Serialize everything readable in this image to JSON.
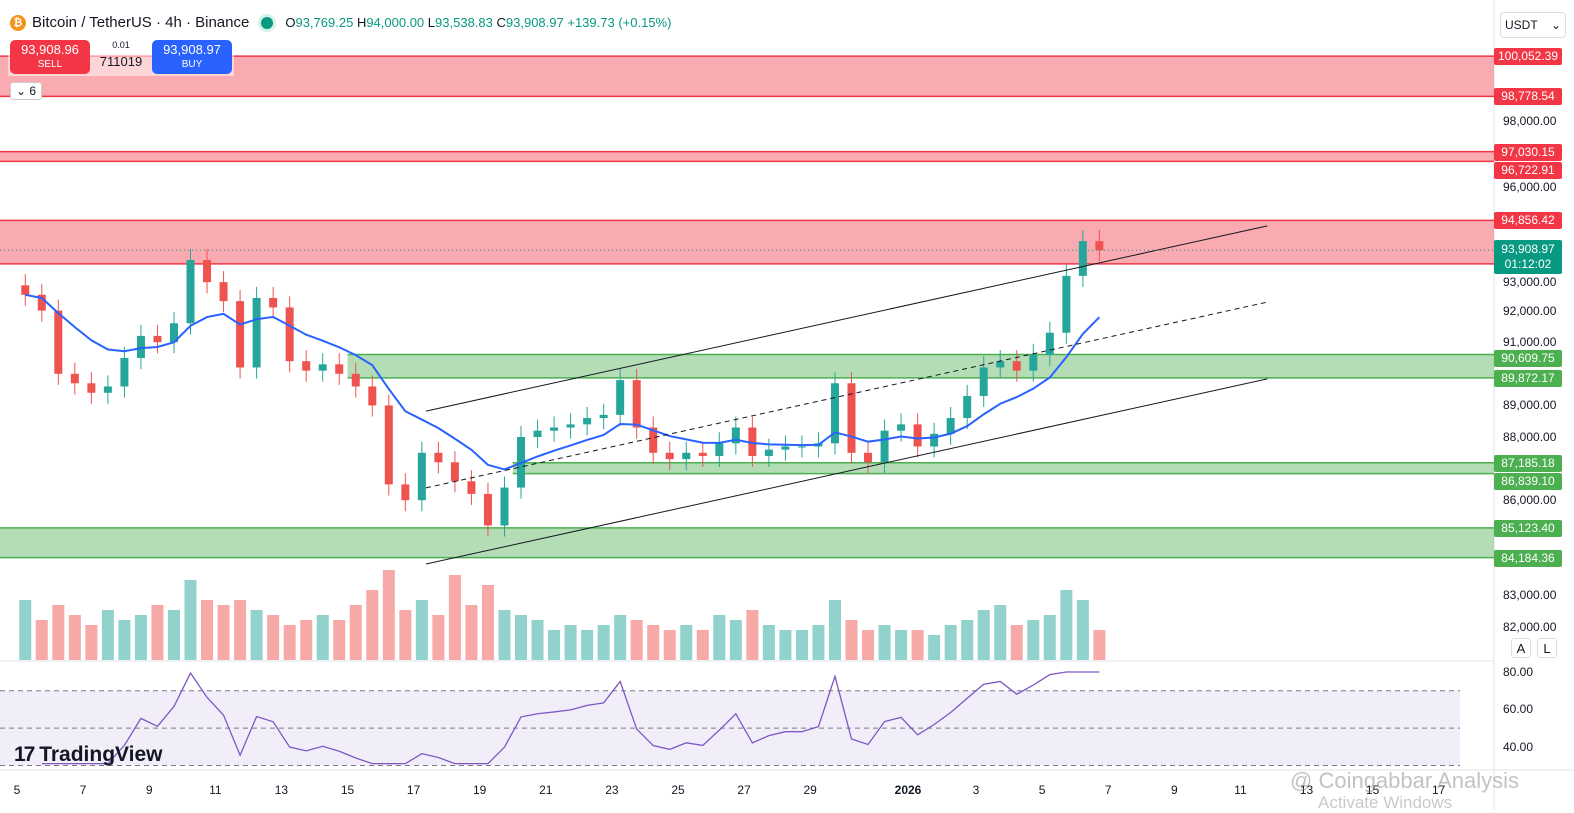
{
  "header": {
    "symbol": "Bitcoin / TetherUS · 4h · Binance",
    "open_label": "O",
    "open": "93,769.25",
    "high_label": "H",
    "high": "94,000.00",
    "low_label": "L",
    "low": "93,538.83",
    "close_label": "C",
    "close": "93,908.97",
    "change": "+139.73 (+0.15%)"
  },
  "trade": {
    "sell_price": "93,908.96",
    "sell_label": "SELL",
    "buy_price": "93,908.97",
    "buy_label": "BUY",
    "step": "0.01",
    "quantity": "711019"
  },
  "indicators": {
    "toggle_label": "6"
  },
  "currency": {
    "selected": "USDT"
  },
  "price_scale": {
    "ticks": [
      "98,000.00",
      "96,000.00",
      "93,000.00",
      "92,000.00",
      "91,000.00",
      "89,000.00",
      "88,000.00",
      "86,000.00",
      "83,000.00",
      "82,000.00"
    ],
    "current_price": "93,908.97",
    "countdown": "01:12:02"
  },
  "zones": [
    {
      "type": "resistance",
      "top": 100052.39,
      "bottom": 98778.54,
      "top_label": "100,052.39",
      "bottom_label": "98,778.54"
    },
    {
      "type": "resistance",
      "top": 97030.15,
      "bottom": 96722.91,
      "top_label": "97,030.15",
      "bottom_label": "96,722.91"
    },
    {
      "type": "resistance",
      "top": 94856.42,
      "bottom": 93480,
      "top_label": "94,856.42"
    },
    {
      "type": "support",
      "top": 90609.75,
      "bottom": 89872.17,
      "top_label": "90,609.75",
      "bottom_label": "89,872.17",
      "start": "2025-12-15"
    },
    {
      "type": "support",
      "top": 87185.18,
      "bottom": 86839.1,
      "top_label": "87,185.18",
      "bottom_label": "86,839.10",
      "start": "2025-12-20"
    },
    {
      "type": "support",
      "top": 85123.4,
      "bottom": 84184.36,
      "top_label": "85,123.40",
      "bottom_label": "84,184.36"
    }
  ],
  "colors": {
    "up": "#26a69a",
    "down": "#ef5350",
    "ema": "#2962ff",
    "resistance": "#f23645",
    "support": "#4caf50",
    "current": "#089981",
    "rsi": "#7e57c2"
  },
  "chart_data": {
    "type": "candlestick",
    "interval": "12h samples of 4h chart",
    "start": "2025-12-05",
    "closes": [
      92500,
      92000,
      90000,
      89700,
      89400,
      89600,
      90500,
      91200,
      91000,
      91600,
      93600,
      92900,
      92300,
      90200,
      92400,
      92100,
      90400,
      90100,
      90300,
      90000,
      89600,
      89000,
      86500,
      86000,
      87500,
      87200,
      86600,
      86200,
      85200,
      86400,
      88000,
      88200,
      88300,
      88400,
      88600,
      88700,
      89800,
      88300,
      87500,
      87300,
      87500,
      87400,
      87800,
      88300,
      87400,
      87600,
      87700,
      87700,
      87800,
      89700,
      87500,
      87200,
      88200,
      88400,
      87700,
      88100,
      88600,
      89300,
      90200,
      90400,
      90100,
      90600,
      91300,
      93100,
      94200,
      93909
    ],
    "volume": [
      60,
      40,
      55,
      45,
      35,
      50,
      40,
      45,
      55,
      50,
      80,
      60,
      55,
      60,
      50,
      45,
      35,
      40,
      45,
      40,
      55,
      70,
      90,
      50,
      60,
      45,
      85,
      55,
      75,
      50,
      45,
      40,
      30,
      35,
      30,
      35,
      45,
      40,
      35,
      30,
      35,
      30,
      45,
      40,
      50,
      35,
      30,
      30,
      35,
      60,
      40,
      30,
      35,
      30,
      30,
      25,
      35,
      40,
      50,
      55,
      35,
      40,
      45,
      70,
      60,
      30
    ],
    "trendlines": [
      {
        "style": "solid",
        "from": [
          "2025-12-17T09:00",
          88820
        ],
        "to": [
          "2026-01-11T20:00",
          94680
        ]
      },
      {
        "style": "dashed",
        "from": [
          "2025-12-17T09:00",
          86390
        ],
        "to": [
          "2026-01-11T20:00",
          92270
        ]
      },
      {
        "style": "solid",
        "from": [
          "2025-12-17T09:00",
          83980
        ],
        "to": [
          "2026-01-11T20:00",
          89840
        ]
      }
    ],
    "ylim": [
      81500,
      100600
    ],
    "rsi": {
      "ticks": [
        "80.00",
        "60.00",
        "40.00"
      ],
      "band": [
        30,
        70
      ]
    },
    "x_ticks": [
      "5",
      "7",
      "9",
      "11",
      "13",
      "15",
      "17",
      "19",
      "21",
      "23",
      "25",
      "27",
      "29",
      "2026",
      "3",
      "5",
      "7",
      "9",
      "11",
      "13",
      "15",
      "17"
    ]
  },
  "logo": "TradingView",
  "watermark": "@ Coingabbar Analysis",
  "os_notice": "Activate Windows",
  "buttons": {
    "auto": "A",
    "log": "L"
  }
}
